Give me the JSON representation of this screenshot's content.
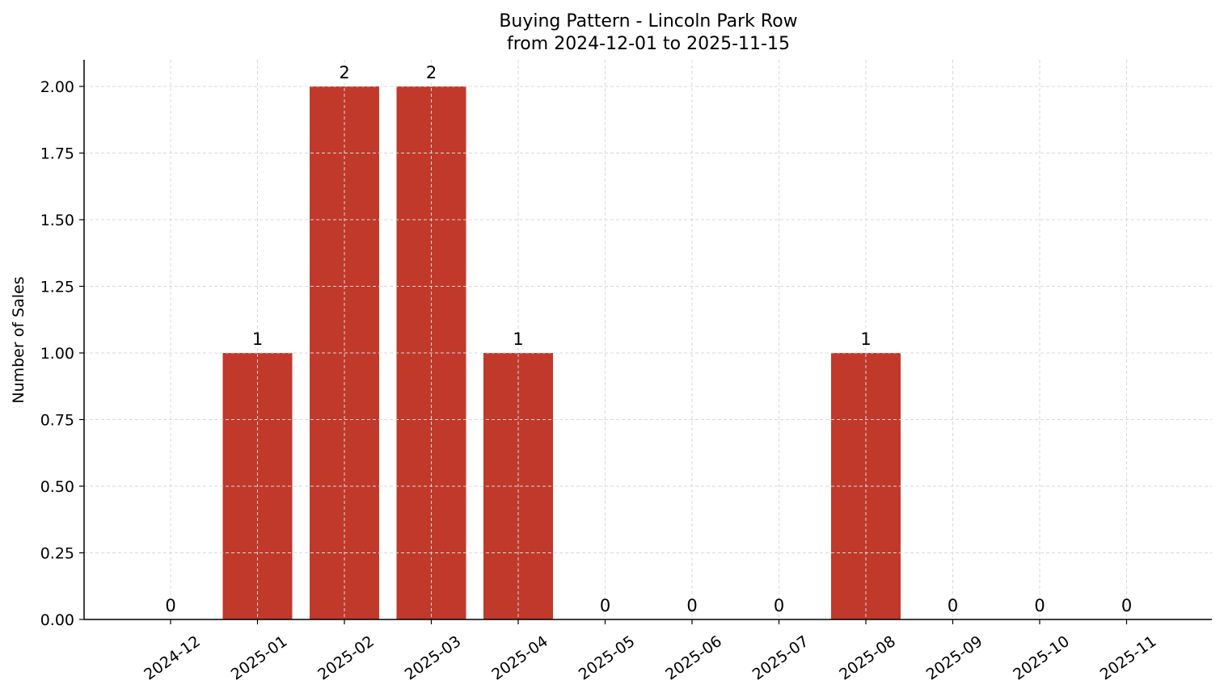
{
  "chart_data": {
    "type": "bar",
    "title": "Buying Pattern - Lincoln Park Row",
    "subtitle": "from 2024-12-01 to 2025-11-15",
    "xlabel": "",
    "ylabel": "Number of Sales",
    "categories": [
      "2024-12",
      "2025-01",
      "2025-02",
      "2025-03",
      "2025-04",
      "2025-05",
      "2025-06",
      "2025-07",
      "2025-08",
      "2025-09",
      "2025-10",
      "2025-11"
    ],
    "values": [
      0,
      1,
      2,
      2,
      1,
      0,
      0,
      0,
      1,
      0,
      0,
      0
    ],
    "ylim": [
      0,
      2.1
    ],
    "yticks": [
      "0.00",
      "0.25",
      "0.50",
      "0.75",
      "1.00",
      "1.25",
      "1.50",
      "1.75",
      "2.00"
    ],
    "grid": true,
    "bar_color": "#c0392b"
  }
}
